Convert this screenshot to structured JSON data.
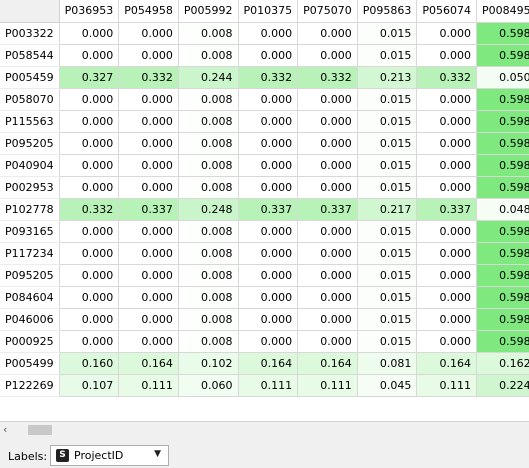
{
  "table": {
    "columns": [
      "P036953",
      "P054958",
      "P005992",
      "P010375",
      "P075070",
      "P095863",
      "P056074",
      "P008495"
    ],
    "rows": [
      {
        "id": "P003322",
        "values": [
          "0.000",
          "0.000",
          "0.008",
          "0.000",
          "0.000",
          "0.015",
          "0.000",
          "0.598"
        ]
      },
      {
        "id": "P058544",
        "values": [
          "0.000",
          "0.000",
          "0.008",
          "0.000",
          "0.000",
          "0.015",
          "0.000",
          "0.598"
        ]
      },
      {
        "id": "P005459",
        "values": [
          "0.327",
          "0.332",
          "0.244",
          "0.332",
          "0.332",
          "0.213",
          "0.332",
          "0.050"
        ]
      },
      {
        "id": "P058070",
        "values": [
          "0.000",
          "0.000",
          "0.008",
          "0.000",
          "0.000",
          "0.015",
          "0.000",
          "0.598"
        ]
      },
      {
        "id": "P115563",
        "values": [
          "0.000",
          "0.000",
          "0.008",
          "0.000",
          "0.000",
          "0.015",
          "0.000",
          "0.598"
        ]
      },
      {
        "id": "P095205",
        "values": [
          "0.000",
          "0.000",
          "0.008",
          "0.000",
          "0.000",
          "0.015",
          "0.000",
          "0.598"
        ]
      },
      {
        "id": "P040904",
        "values": [
          "0.000",
          "0.000",
          "0.008",
          "0.000",
          "0.000",
          "0.015",
          "0.000",
          "0.598"
        ]
      },
      {
        "id": "P002953",
        "values": [
          "0.000",
          "0.000",
          "0.008",
          "0.000",
          "0.000",
          "0.015",
          "0.000",
          "0.598"
        ]
      },
      {
        "id": "P102778",
        "values": [
          "0.332",
          "0.337",
          "0.248",
          "0.337",
          "0.337",
          "0.217",
          "0.337",
          "0.048"
        ]
      },
      {
        "id": "P093165",
        "values": [
          "0.000",
          "0.000",
          "0.008",
          "0.000",
          "0.000",
          "0.015",
          "0.000",
          "0.598"
        ]
      },
      {
        "id": "P117234",
        "values": [
          "0.000",
          "0.000",
          "0.008",
          "0.000",
          "0.000",
          "0.015",
          "0.000",
          "0.598"
        ]
      },
      {
        "id": "P095205",
        "values": [
          "0.000",
          "0.000",
          "0.008",
          "0.000",
          "0.000",
          "0.015",
          "0.000",
          "0.598"
        ]
      },
      {
        "id": "P084604",
        "values": [
          "0.000",
          "0.000",
          "0.008",
          "0.000",
          "0.000",
          "0.015",
          "0.000",
          "0.598"
        ]
      },
      {
        "id": "P046006",
        "values": [
          "0.000",
          "0.000",
          "0.008",
          "0.000",
          "0.000",
          "0.015",
          "0.000",
          "0.598"
        ]
      },
      {
        "id": "P000925",
        "values": [
          "0.000",
          "0.000",
          "0.008",
          "0.000",
          "0.000",
          "0.015",
          "0.000",
          "0.598"
        ]
      },
      {
        "id": "P005499",
        "values": [
          "0.160",
          "0.164",
          "0.102",
          "0.164",
          "0.164",
          "0.081",
          "0.164",
          "0.162"
        ]
      },
      {
        "id": "P122269",
        "values": [
          "0.107",
          "0.111",
          "0.060",
          "0.111",
          "0.111",
          "0.045",
          "0.111",
          "0.224"
        ]
      }
    ]
  },
  "footer": {
    "labels_text": "Labels:",
    "combo_icon_letter": "S",
    "combo_value": "ProjectID"
  },
  "colors": {
    "cell_low": "#ffffff",
    "cell_high": "#7fe87f"
  },
  "icons": {
    "scroll_left": "chevron-left-icon",
    "combo_type": "string-variable-icon",
    "combo_caret": "triangle-down-icon"
  }
}
